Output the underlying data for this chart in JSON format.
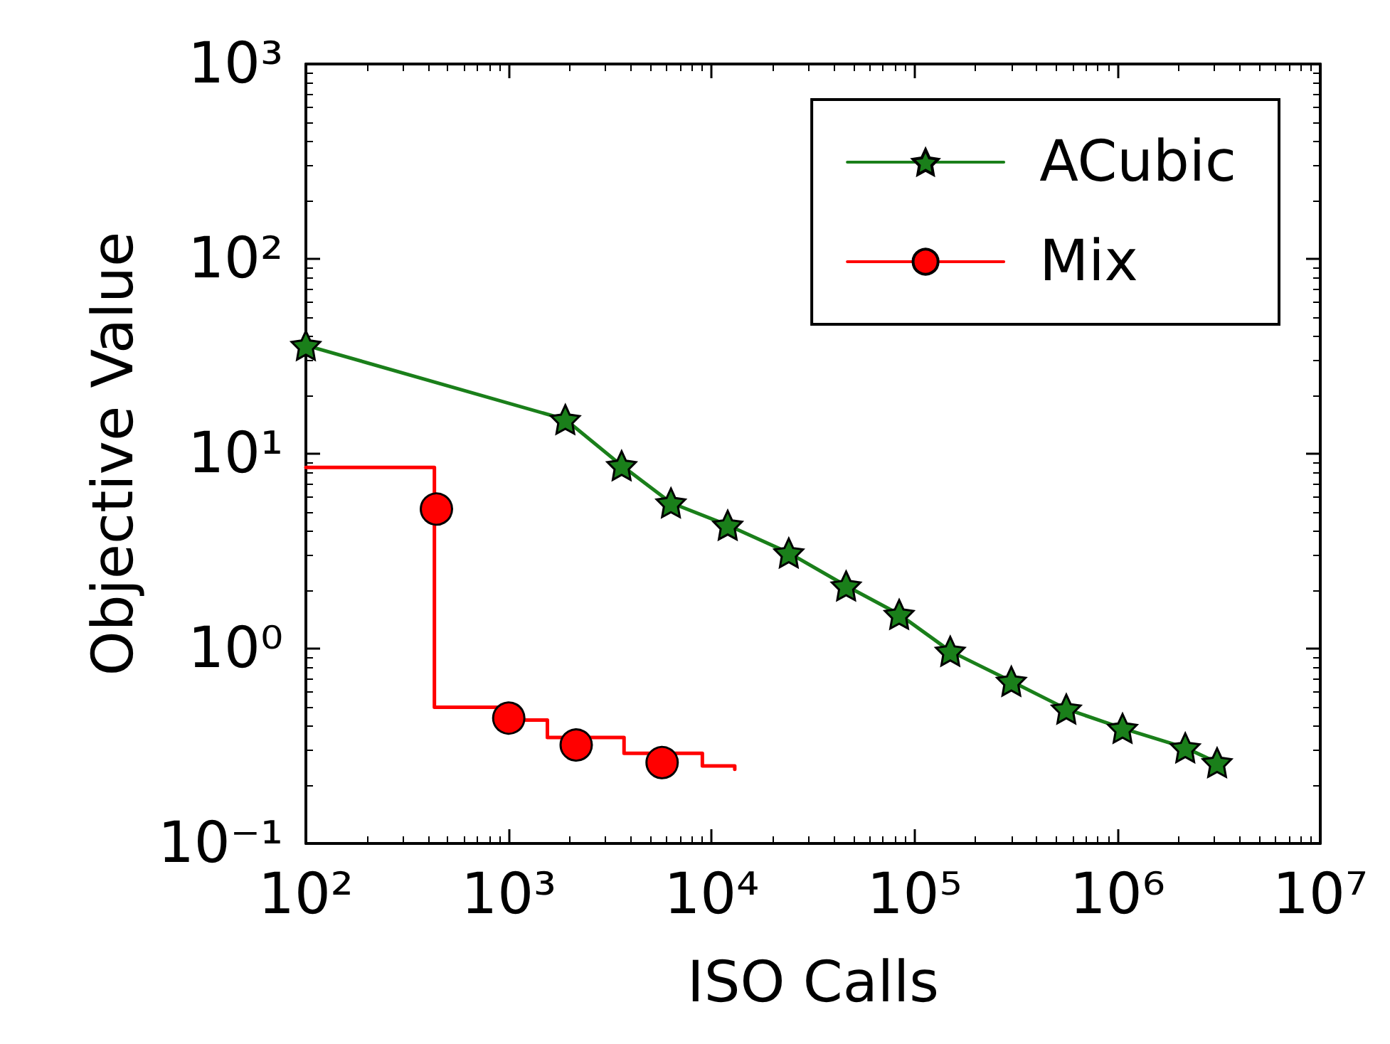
{
  "chart_data": {
    "type": "line",
    "xlabel": "ISO Calls",
    "ylabel": "Objective Value",
    "log": "xy",
    "grid": false,
    "legend": "top right",
    "xlim": [
      100,
      10000000
    ],
    "ylim": [
      0.1,
      1000
    ],
    "xticks": [
      {
        "value": 100,
        "label": "10²"
      },
      {
        "value": 1000,
        "label": "10³"
      },
      {
        "value": 10000,
        "label": "10⁴"
      },
      {
        "value": 100000,
        "label": "10⁵"
      },
      {
        "value": 1000000,
        "label": "10⁶"
      },
      {
        "value": 10000000,
        "label": "10⁷"
      }
    ],
    "yticks": [
      {
        "value": 0.1,
        "label": "10⁻¹"
      },
      {
        "value": 1,
        "label": "10⁰"
      },
      {
        "value": 10,
        "label": "10¹"
      },
      {
        "value": 100,
        "label": "10²"
      },
      {
        "value": 1000,
        "label": "10³"
      }
    ],
    "series": [
      {
        "name": "ACubic",
        "color": "#1a7f1a",
        "marker": "star",
        "x": [
          100,
          1900,
          3600,
          6300,
          12000,
          24000,
          46000,
          84000,
          150000,
          300000,
          560000,
          1060000,
          2160000,
          3100000
        ],
        "values": [
          36,
          15,
          8.7,
          5.6,
          4.3,
          3.1,
          2.1,
          1.5,
          0.97,
          0.68,
          0.49,
          0.39,
          0.31,
          0.26
        ]
      },
      {
        "name": "Mix",
        "type": "step",
        "color": "#ff0000",
        "marker": "none",
        "x": [
          100,
          430,
          1000,
          1550,
          3700,
          9000,
          13000
        ],
        "values": [
          8.5,
          0.5,
          0.43,
          0.35,
          0.29,
          0.25,
          0.24
        ]
      },
      {
        "type": "scatter",
        "color": "#ff0000",
        "marker": "circle",
        "x": [
          440,
          1000,
          2150,
          5700
        ],
        "values": [
          5.2,
          0.44,
          0.32,
          0.26
        ]
      }
    ]
  }
}
